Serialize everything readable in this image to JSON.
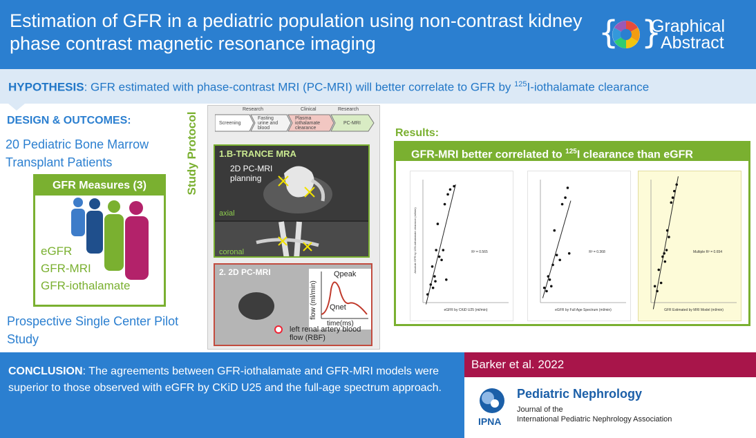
{
  "header": {
    "title": "Estimation of GFR in a pediatric population using non-contrast kidney phase contrast magnetic resonance imaging",
    "logo_line1": "Graphical",
    "logo_line2": "Abstract",
    "bg_color": "#2b7fd0"
  },
  "hypothesis": {
    "label": "HYPOTHESIS",
    "text_before": ": GFR estimated with phase-contrast MRI (PC-MRI) will better correlate to GFR by ",
    "superscript": "125",
    "text_after": "I-iothalamate clearance"
  },
  "design": {
    "heading": "DESIGN & OUTCOMES",
    "heading_colon": ":",
    "patients": "20 Pediatric Bone Marrow Transplant Patients",
    "measures_title": "GFR Measures (3)",
    "measures": [
      "eGFR",
      "GFR-MRI",
      "GFR-iothalamate"
    ],
    "study_type": "Prospective Single Center Pilot Study"
  },
  "protocol": {
    "side_label": "Study Protocol",
    "phase_labels": [
      "Research",
      "Clinical",
      "Research"
    ],
    "steps": [
      "Screening",
      "Fasting urine and blood",
      "Plasma iothalamate clearance",
      "PC-MRI"
    ],
    "mra_title": "1.B-TRANCE MRA",
    "mra_planning": "2D PC-MRI planning",
    "mra_axial": "axial",
    "mra_coronal": "coronal",
    "pcmri_title": "2. 2D PC-MRI",
    "graph_y": "flow (ml/min)",
    "graph_x": "time(ms)",
    "graph_qpeak": "Qpeak",
    "graph_qnet": "Qnet",
    "rbf_label": "left renal artery blood flow (RBF)"
  },
  "results": {
    "heading": "Results:",
    "bar_before": "GFR-MRI better correlated to ",
    "bar_sup": "125",
    "bar_after": "I clearance than eGFR",
    "accent": "#7ab030"
  },
  "chart_data": [
    {
      "type": "scatter",
      "xlabel": "eGFR by CKiD U25 (ml/min)",
      "ylabel": "Absolute GFR by 125I-iothalamate clearance (ml/min)",
      "annotation": "R² = 0.565",
      "x": [
        52,
        60,
        64,
        66,
        70,
        72,
        74,
        78,
        82,
        88,
        92,
        96,
        100,
        104,
        110,
        120
      ],
      "y": [
        50,
        62,
        84,
        58,
        72,
        66,
        104,
        136,
        96,
        92,
        104,
        160,
        68,
        172,
        178,
        182
      ],
      "xlim": [
        40,
        260
      ],
      "ylim": [
        40,
        190
      ]
    },
    {
      "type": "scatter",
      "xlabel": "eGFR by Full Age Spectrum (ml/min)",
      "ylabel": "",
      "annotation": "R² = 0.368",
      "x": [
        50,
        56,
        60,
        64,
        68,
        72,
        76,
        82,
        90,
        96,
        104,
        110,
        114
      ],
      "y": [
        58,
        54,
        72,
        68,
        60,
        86,
        128,
        98,
        92,
        160,
        168,
        180,
        100
      ],
      "xlim": [
        40,
        260
      ],
      "ylim": [
        40,
        190
      ]
    },
    {
      "type": "scatter",
      "xlabel": "GFR Estimated by MRI Model (ml/min)",
      "ylabel": "",
      "annotation": "Multiple R² = 0.654",
      "x": [
        50,
        56,
        60,
        66,
        70,
        74,
        76,
        80,
        82,
        86,
        92,
        96,
        100,
        106
      ],
      "y": [
        60,
        54,
        80,
        64,
        96,
        100,
        90,
        104,
        128,
        120,
        162,
        168,
        176,
        184
      ],
      "xlim": [
        40,
        260
      ],
      "ylim": [
        40,
        190
      ]
    }
  ],
  "conclusion": {
    "label": "CONCLUSION",
    "text": ": The agreements between GFR-iothalamate and GFR-MRI models were superior to those observed with eGFR by CKiD U25 and the full-age spectrum approach."
  },
  "citation": {
    "text": "Barker et al. 2022",
    "bg_color": "#a8154a"
  },
  "journal": {
    "name": "Pediatric Nephrology",
    "line1": "Journal of the",
    "line2": "International Pediatric Nephrology Association",
    "abbr": "IPNA"
  }
}
